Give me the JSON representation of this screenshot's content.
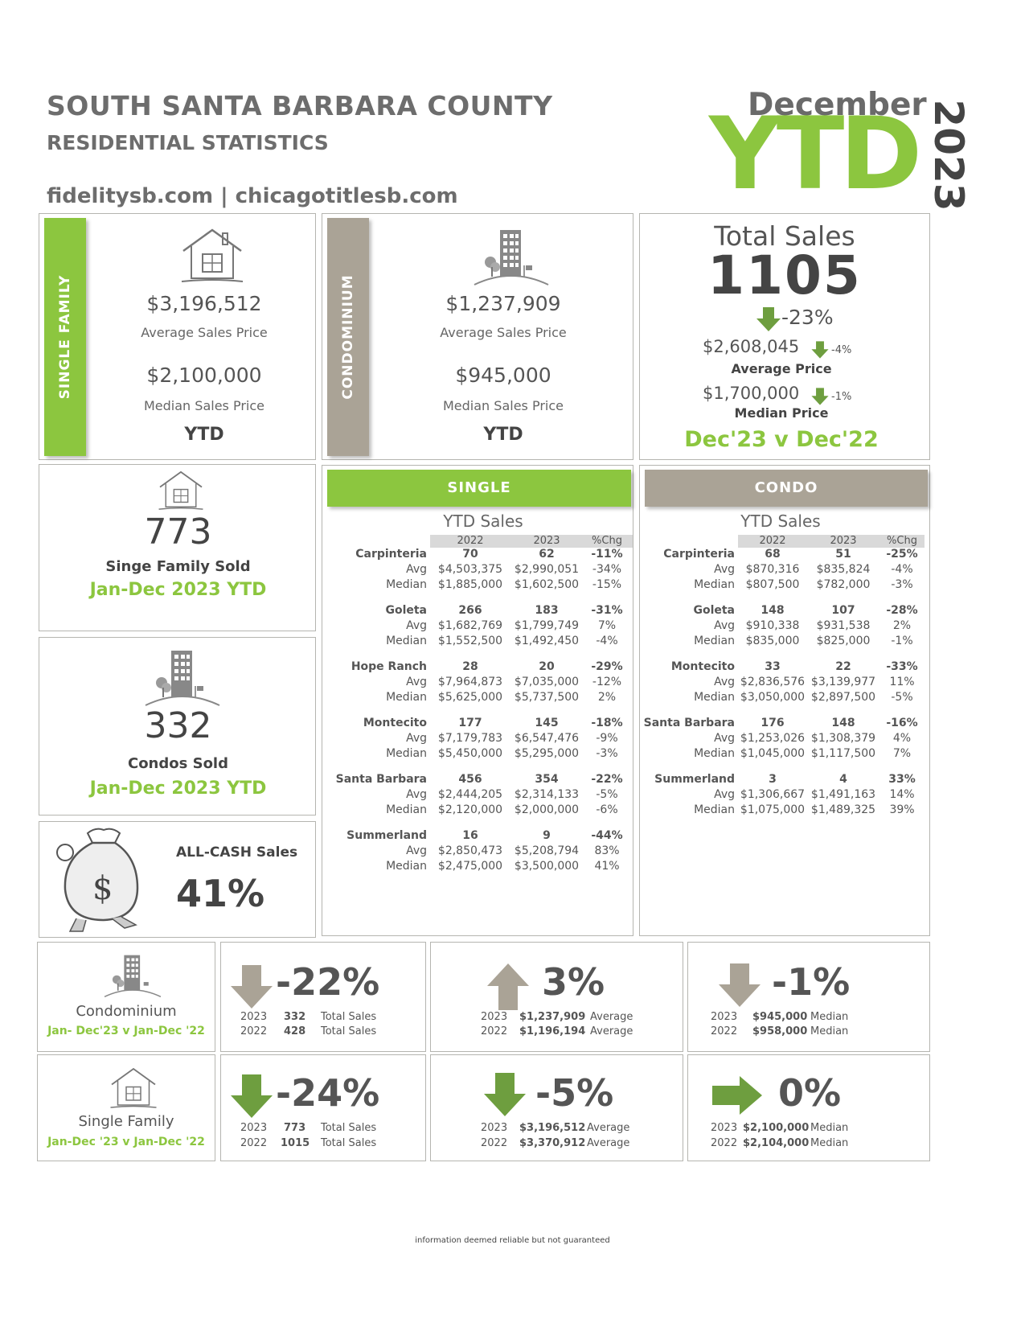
{
  "header": {
    "title": "SOUTH SANTA BARBARA COUNTY",
    "subtitle": "RESIDENTIAL STATISTICS",
    "sites": "fidelitysb.com | chicagotitlesb.com",
    "month": "December",
    "ytd": "YTD",
    "year": "2023"
  },
  "colors": {
    "green": "#8cc63f",
    "taupe": "#aaa396",
    "gray_text": "#6d6d6d"
  },
  "single_family_card": {
    "tab": "SINGLE FAMILY",
    "icon": "house-icon",
    "avg_price": "$3,196,512",
    "avg_label": "Average Sales Price",
    "median_price": "$2,100,000",
    "median_label": "Median Sales Price",
    "period": "YTD"
  },
  "condo_card": {
    "tab": "CONDOMINIUM",
    "icon": "building-icon",
    "avg_price": "$1,237,909",
    "avg_label": "Average Sales Price",
    "median_price": "$945,000",
    "median_label": "Median Sales Price",
    "period": "YTD"
  },
  "total_sales": {
    "label": "Total Sales",
    "count": "1105",
    "change": "-23%",
    "avg_price": "$2,608,045",
    "avg_change": "-4%",
    "avg_label": "Average Price",
    "median_price": "$1,700,000",
    "median_change": "-1%",
    "median_label": "Median Price",
    "comparison": "Dec'23 v Dec'22"
  },
  "sf_sold": {
    "icon": "house-icon",
    "count": "773",
    "label": "Singe Family Sold",
    "period": "Jan-Dec 2023 YTD"
  },
  "condos_sold": {
    "icon": "building-icon",
    "count": "332",
    "label": "Condos Sold",
    "period": "Jan-Dec 2023 YTD"
  },
  "all_cash": {
    "icon": "money-bag-icon",
    "label": "ALL-CASH Sales",
    "value": "41%"
  },
  "single_table": {
    "header": "SINGLE",
    "subheader": "YTD Sales",
    "columns": [
      "2022",
      "2023",
      "%Chg"
    ],
    "areas": [
      {
        "name": "Carpinteria",
        "sales": [
          "70",
          "62",
          "-11%"
        ],
        "avg_label": "Avg",
        "avg": [
          "$4,503,375",
          "$2,990,051",
          "-34%"
        ],
        "median_label": "Median",
        "median": [
          "$1,885,000",
          "$1,602,500",
          "-15%"
        ]
      },
      {
        "name": "Goleta",
        "sales": [
          "266",
          "183",
          "-31%"
        ],
        "avg_label": "Avg",
        "avg": [
          "$1,682,769",
          "$1,799,749",
          "7%"
        ],
        "median_label": "Median",
        "median": [
          "$1,552,500",
          "$1,492,450",
          "-4%"
        ]
      },
      {
        "name": "Hope Ranch",
        "sales": [
          "28",
          "20",
          "-29%"
        ],
        "avg_label": "Avg",
        "avg": [
          "$7,964,873",
          "$7,035,000",
          "-12%"
        ],
        "median_label": "Median",
        "median": [
          "$5,625,000",
          "$5,737,500",
          "2%"
        ]
      },
      {
        "name": "Montecito",
        "sales": [
          "177",
          "145",
          "-18%"
        ],
        "avg_label": "Avg",
        "avg": [
          "$7,179,783",
          "$6,547,476",
          "-9%"
        ],
        "median_label": "Median",
        "median": [
          "$5,450,000",
          "$5,295,000",
          "-3%"
        ]
      },
      {
        "name": "Santa Barbara",
        "sales": [
          "456",
          "354",
          "-22%"
        ],
        "avg_label": "Avg",
        "avg": [
          "$2,444,205",
          "$2,314,133",
          "-5%"
        ],
        "median_label": "Median",
        "median": [
          "$2,120,000",
          "$2,000,000",
          "-6%"
        ]
      },
      {
        "name": "Summerland",
        "sales": [
          "16",
          "9",
          "-44%"
        ],
        "avg_label": "Avg",
        "avg": [
          "$2,850,473",
          "$5,208,794",
          "83%"
        ],
        "median_label": "Median",
        "median": [
          "$2,475,000",
          "$3,500,000",
          "41%"
        ]
      }
    ]
  },
  "condo_table": {
    "header": "CONDO",
    "subheader": "YTD Sales",
    "columns": [
      "2022",
      "2023",
      "%Chg"
    ],
    "areas": [
      {
        "name": "Carpinteria",
        "sales": [
          "68",
          "51",
          "-25%"
        ],
        "avg_label": "Avg",
        "avg": [
          "$870,316",
          "$835,824",
          "-4%"
        ],
        "median_label": "Median",
        "median": [
          "$807,500",
          "$782,000",
          "-3%"
        ]
      },
      {
        "name": "Goleta",
        "sales": [
          "148",
          "107",
          "-28%"
        ],
        "avg_label": "Avg",
        "avg": [
          "$910,338",
          "$931,538",
          "2%"
        ],
        "median_label": "Median",
        "median": [
          "$835,000",
          "$825,000",
          "-1%"
        ]
      },
      {
        "name": "Montecito",
        "sales": [
          "33",
          "22",
          "-33%"
        ],
        "avg_label": "Avg",
        "avg": [
          "$2,836,576",
          "$3,139,977",
          "11%"
        ],
        "median_label": "Median",
        "median": [
          "$3,050,000",
          "$2,897,500",
          "-5%"
        ]
      },
      {
        "name": "Santa Barbara",
        "sales": [
          "176",
          "148",
          "-16%"
        ],
        "avg_label": "Avg",
        "avg": [
          "$1,253,026",
          "$1,308,379",
          "4%"
        ],
        "median_label": "Median",
        "median": [
          "$1,045,000",
          "$1,117,500",
          "7%"
        ]
      },
      {
        "name": "Summerland",
        "sales": [
          "3",
          "4",
          "33%"
        ],
        "avg_label": "Avg",
        "avg": [
          "$1,306,667",
          "$1,491,163",
          "14%"
        ],
        "median_label": "Median",
        "median": [
          "$1,075,000",
          "$1,489,325",
          "39%"
        ]
      }
    ]
  },
  "bottom": {
    "condo": {
      "label": "Condominium",
      "period": "Jan- Dec'23 v Jan-Dec '22",
      "sales": {
        "pct": "-22%",
        "direction": "down",
        "rows": [
          [
            "2023",
            "332",
            "Total Sales"
          ],
          [
            "2022",
            "428",
            "Total Sales"
          ]
        ]
      },
      "average": {
        "pct": "3%",
        "direction": "up",
        "rows": [
          [
            "2023",
            "$1,237,909",
            "Average"
          ],
          [
            "2022",
            "$1,196,194",
            "Average"
          ]
        ]
      },
      "median": {
        "pct": "-1%",
        "direction": "down",
        "rows": [
          [
            "2023",
            "$945,000",
            "Median"
          ],
          [
            "2022",
            "$958,000",
            "Median"
          ]
        ]
      }
    },
    "single": {
      "label": "Single Family",
      "period": "Jan-Dec '23 v Jan-Dec '22",
      "sales": {
        "pct": "-24%",
        "direction": "down",
        "rows": [
          [
            "2023",
            "773",
            "Total Sales"
          ],
          [
            "2022",
            "1015",
            "Total Sales"
          ]
        ]
      },
      "average": {
        "pct": "-5%",
        "direction": "down",
        "rows": [
          [
            "2023",
            "$3,196,512",
            "Average"
          ],
          [
            "2022",
            "$3,370,912",
            "Average"
          ]
        ]
      },
      "median": {
        "pct": "0%",
        "direction": "right",
        "rows": [
          [
            "2023",
            "$2,100,000",
            "Median"
          ],
          [
            "2022",
            "$2,104,000",
            "Median"
          ]
        ]
      }
    }
  },
  "footer": "information deemed reliable but not guaranteed"
}
